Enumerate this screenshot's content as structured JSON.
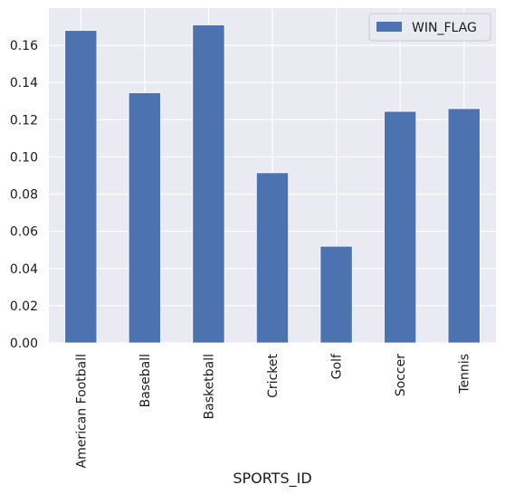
{
  "chart_data": {
    "type": "bar",
    "categories": [
      "American Football",
      "Baseball",
      "Basketball",
      "Cricket",
      "Golf",
      "Soccer",
      "Tennis"
    ],
    "series": [
      {
        "name": "WIN_FLAG",
        "values": [
          0.168,
          0.1345,
          0.171,
          0.0915,
          0.052,
          0.1245,
          0.126
        ]
      }
    ],
    "xlabel": "SPORTS_ID",
    "ylabel": "",
    "ylim": [
      0,
      0.18
    ],
    "yticks": [
      "0.00",
      "0.02",
      "0.04",
      "0.06",
      "0.08",
      "0.10",
      "0.12",
      "0.14",
      "0.16"
    ],
    "grid": true,
    "legend_position": "top-right",
    "colors": {
      "bar": "#4c72b0",
      "plot_background": "#eaeaf2",
      "grid": "#ffffff"
    }
  }
}
